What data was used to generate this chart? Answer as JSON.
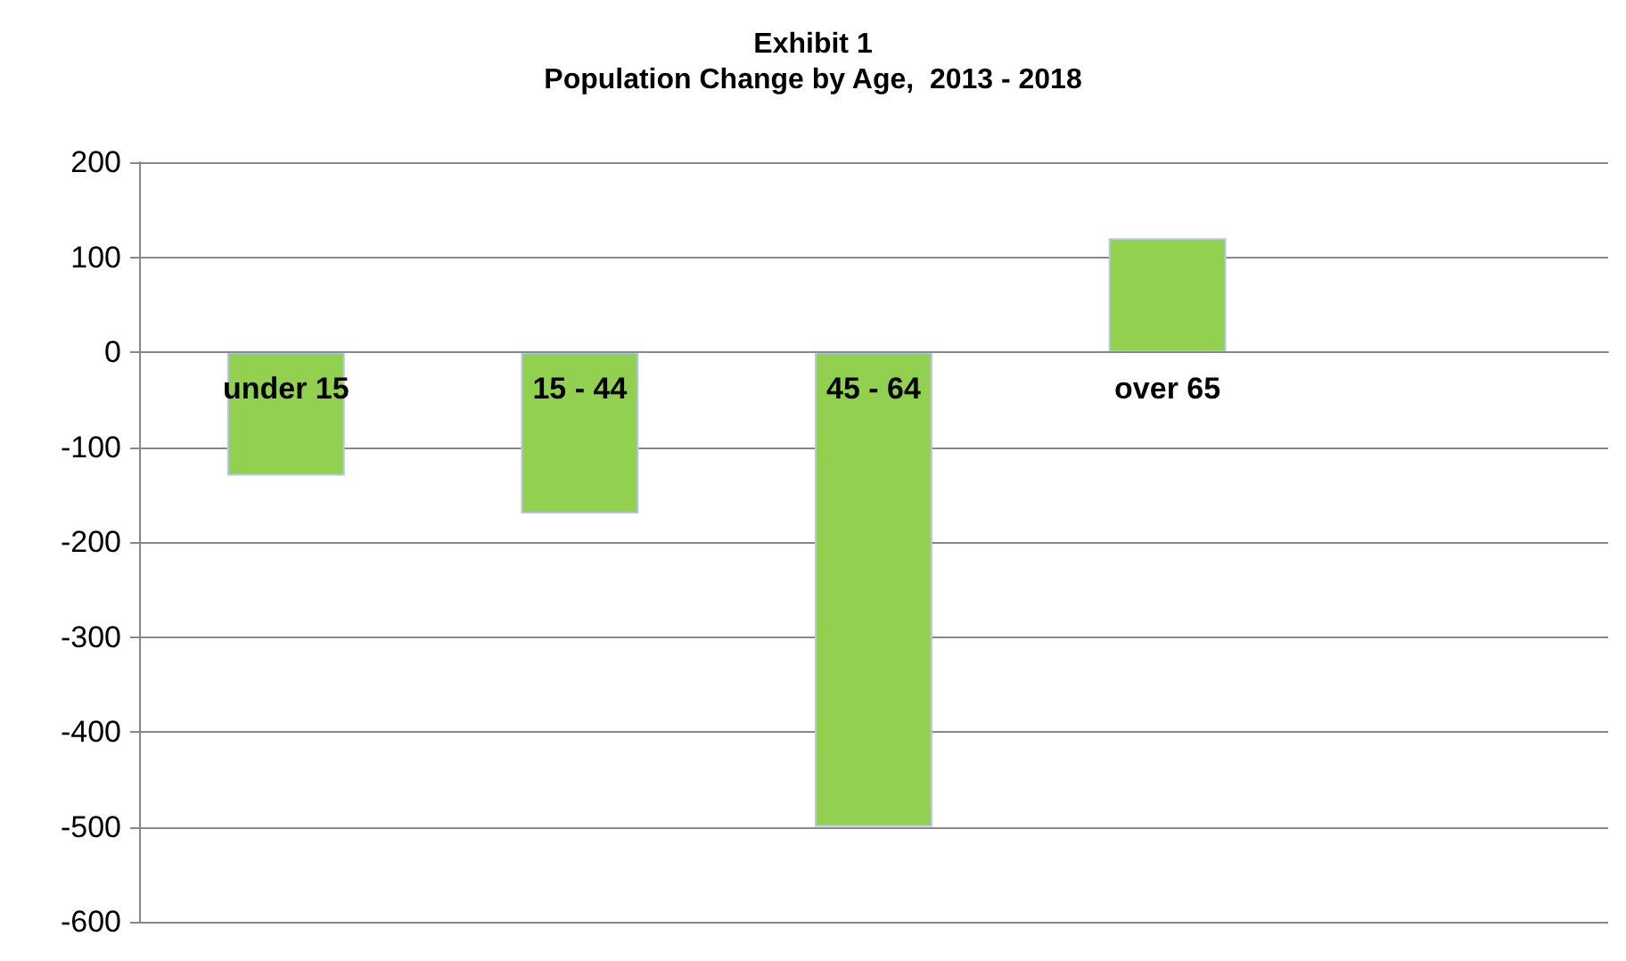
{
  "chart_data": {
    "type": "bar",
    "title": "Exhibit 1",
    "subtitle": "Population Change by Age,  2013 - 2018",
    "categories": [
      "under 15",
      "15 - 44",
      "45 - 64",
      "over 65",
      null
    ],
    "values": [
      -130,
      -170,
      -500,
      120,
      null
    ],
    "color": "#92d050",
    "ylim": [
      -600,
      200
    ],
    "yticks": [
      -600,
      -500,
      -400,
      -300,
      -200,
      -100,
      0,
      100,
      200
    ],
    "grid": "y"
  }
}
